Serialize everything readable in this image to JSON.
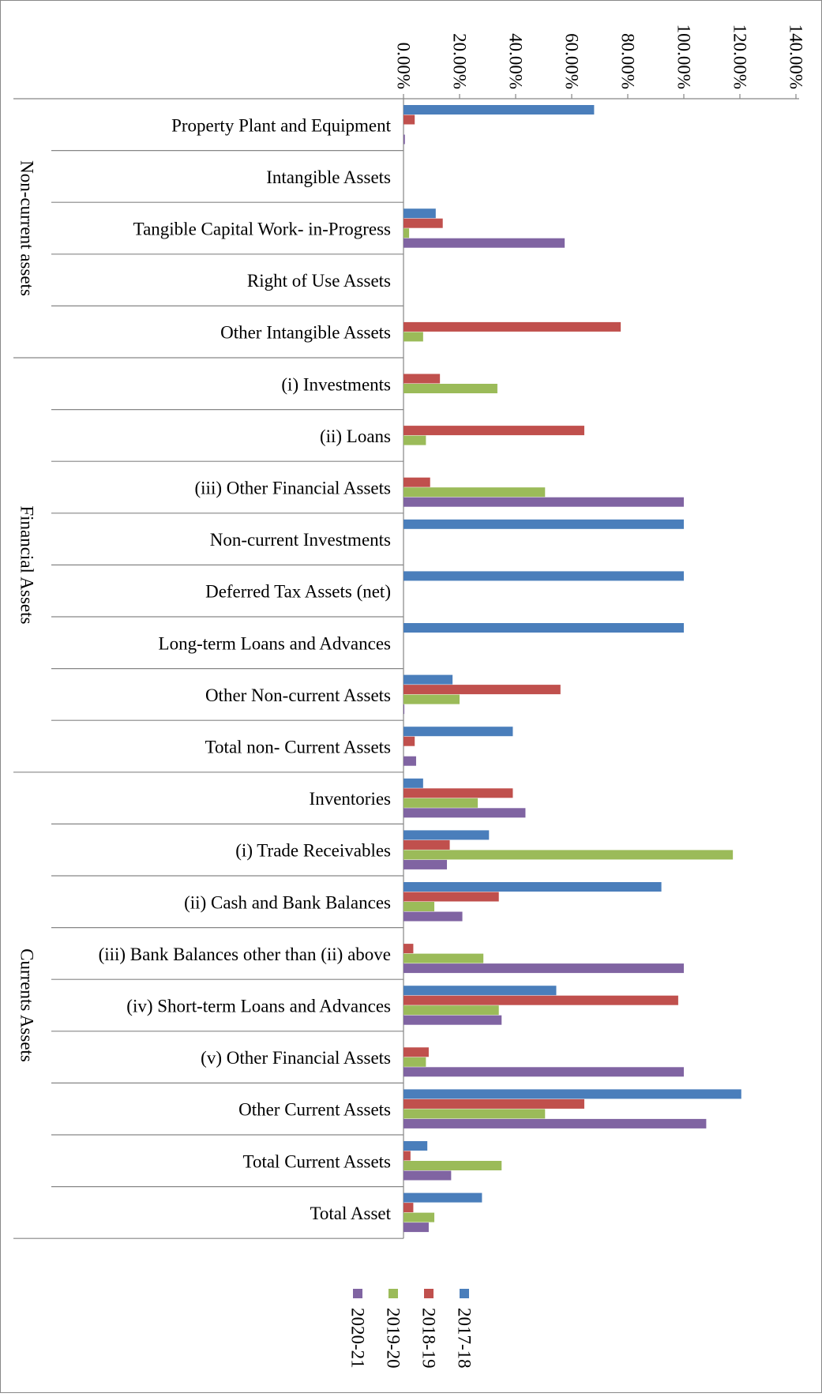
{
  "chart_data": {
    "type": "bar",
    "orientation": "horizontal",
    "title": "",
    "xlabel": "",
    "ylabel": "",
    "xlim": [
      0,
      140
    ],
    "x_ticks": [
      "0.00%",
      "20.00%",
      "40.00%",
      "60.00%",
      "80.00%",
      "100.00%",
      "120.00%",
      "140.00%"
    ],
    "grid": false,
    "legend_position": "bottom",
    "groups": [
      {
        "label": "Non-current assets",
        "start": 0,
        "end": 4
      },
      {
        "label": "Financial Assets",
        "start": 5,
        "end": 12
      },
      {
        "label": "Currents Assets",
        "start": 13,
        "end": 21
      }
    ],
    "categories": [
      "Property Plant and Equipment",
      "Intangible Assets",
      "Tangible Capital Work- in-Progress",
      "Right of Use Assets",
      "Other Intangible Assets",
      "(i) Investments",
      "(ii) Loans",
      "(iii) Other Financial Assets",
      "Non-current   Investments",
      "Deferred Tax Assets (net)",
      "Long-term Loans and Advances",
      "Other  Non-current  Assets",
      "Total non- Current Assets",
      "Inventories",
      "(i) Trade Receivables",
      "(ii) Cash and Bank Balances",
      "(iii) Bank Balances other than (ii) above",
      "(iv) Short-term Loans and Advances",
      "(v) Other Financial Assets",
      "Other Current Assets",
      "Total Current Assets",
      "Total Asset"
    ],
    "series": [
      {
        "name": "2017-18",
        "color": "#4a7ebb",
        "values": [
          68,
          0,
          11.5,
          0,
          0,
          0,
          0,
          0,
          100,
          100,
          100,
          17.5,
          39,
          7,
          30.5,
          92,
          0,
          54.5,
          0,
          120.5,
          8.5,
          28
        ]
      },
      {
        "name": "2018-19",
        "color": "#c0504d",
        "values": [
          4,
          0,
          14,
          0,
          77.5,
          13,
          64.5,
          9.5,
          0,
          0,
          0,
          56,
          4,
          39,
          16.5,
          34,
          3.5,
          98,
          9,
          64.5,
          2.5,
          3.5
        ]
      },
      {
        "name": "2019-20",
        "color": "#9bbb59",
        "values": [
          0,
          0,
          2,
          0,
          7,
          33.5,
          8,
          50.5,
          0,
          0,
          0,
          20,
          0,
          26.5,
          117.5,
          11,
          28.5,
          34,
          8,
          50.5,
          35,
          11
        ]
      },
      {
        "name": "2020-21",
        "color": "#8064a2",
        "values": [
          0.5,
          0,
          57.5,
          0,
          0,
          0,
          0,
          100,
          0,
          0,
          0,
          0.3,
          4.5,
          43.5,
          15.5,
          21,
          100,
          35,
          100,
          108,
          17,
          9
        ]
      }
    ]
  }
}
